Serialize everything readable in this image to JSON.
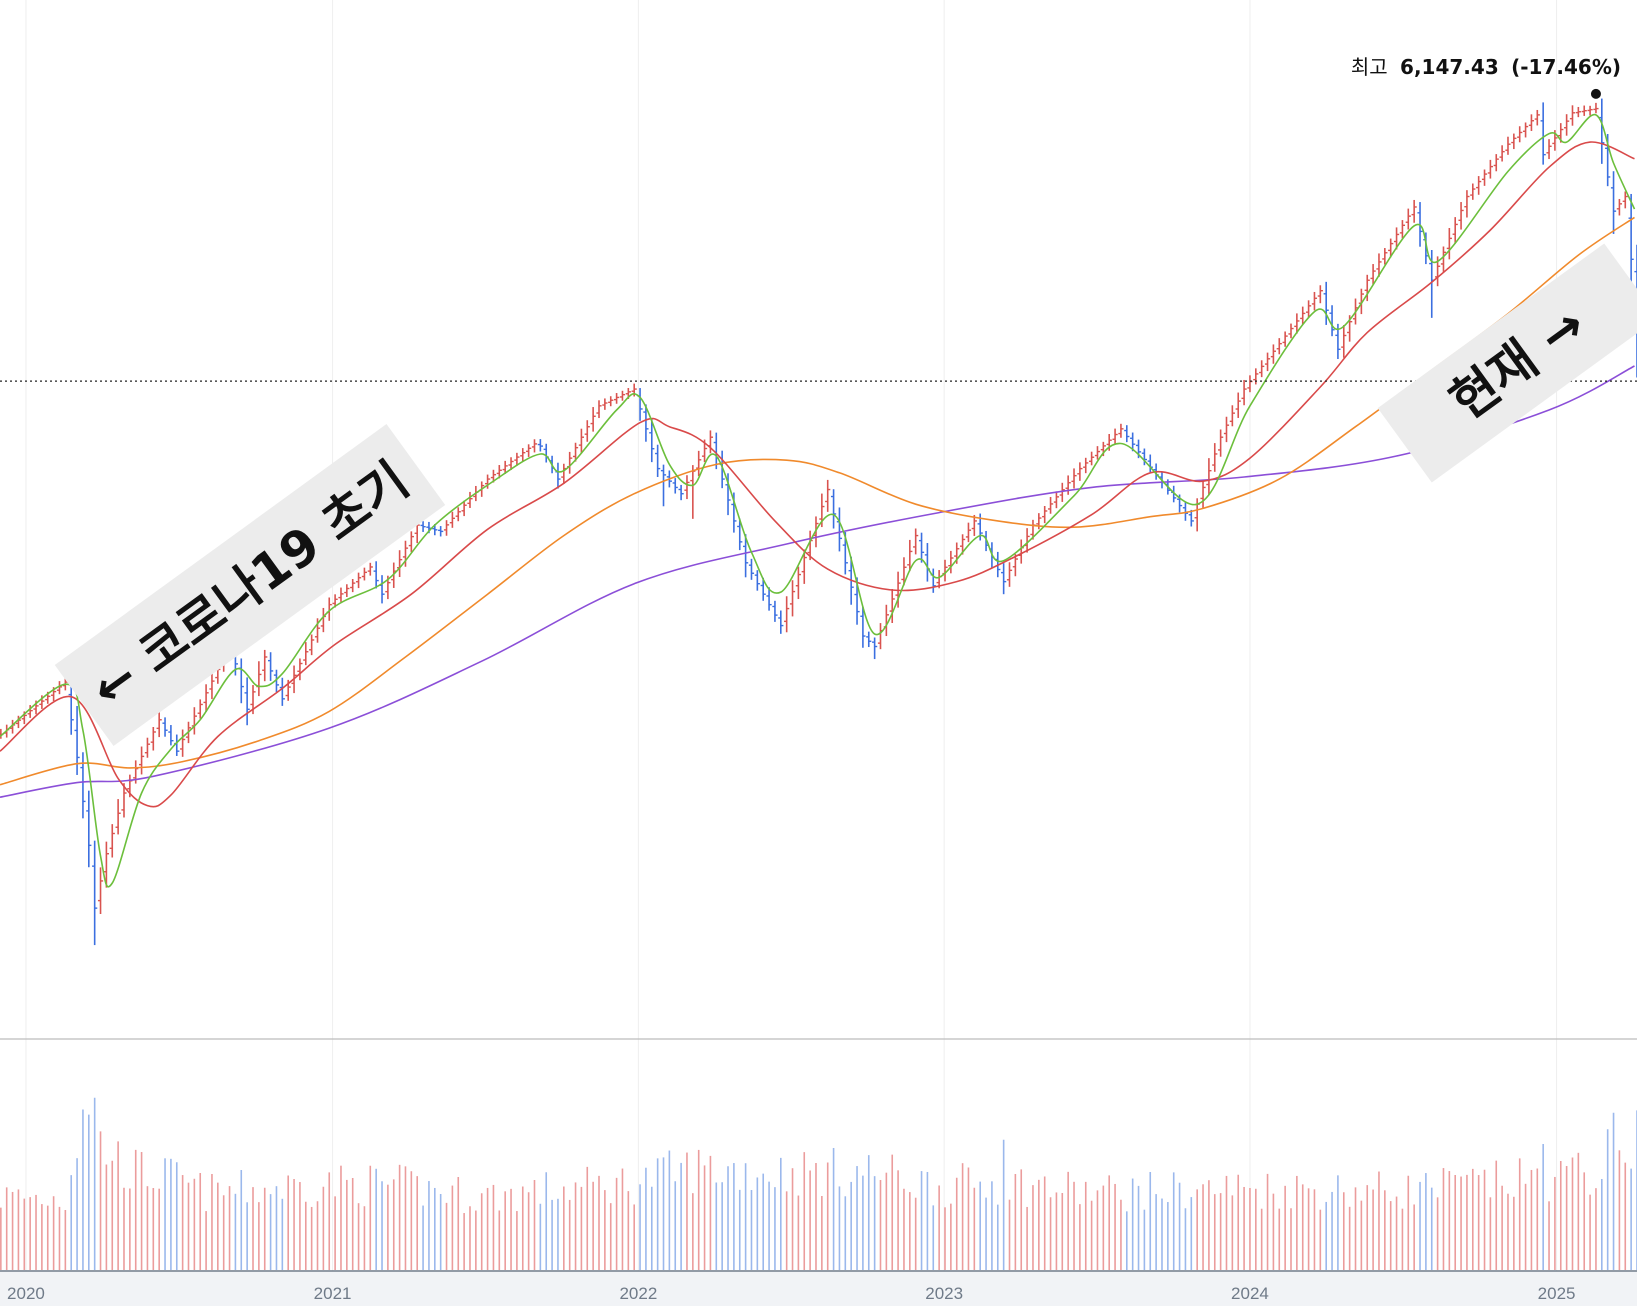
{
  "chart_data": {
    "type": "ohlc",
    "x_axis": {
      "ticks": [
        "2020",
        "2021",
        "2022",
        "2023",
        "2024",
        "2025"
      ],
      "tick_dates": [
        "2020-01-01",
        "2021-01-01",
        "2022-01-01",
        "2023-01-01",
        "2024-01-01",
        "2025-01-01"
      ]
    },
    "x_range": [
      "2019-12-01",
      "2025-04-07"
    ],
    "price_range": [
      2100,
      6400
    ],
    "volume_range": [
      0,
      1.0
    ],
    "reference_level": 4818,
    "peak": {
      "prefix": "최고",
      "value": "6,147.43",
      "change": "(-17.46%)",
      "date": "2025-02-17",
      "price": 6147.43
    },
    "annotations": [
      {
        "text": "← 코로나19 초기",
        "anchor_date": "2020-03-09"
      },
      {
        "text": "현재 →",
        "anchor_date": "2025-04-04"
      }
    ],
    "series_colors": {
      "up": "#d9534f",
      "down": "#3b6fe0",
      "volume_up": "#eb9c9c",
      "volume_down": "#9bb8ec",
      "ma_short": "#6cbf3c",
      "ma_mid": "#d94a4a",
      "ma_long": "#f08a2c",
      "ma_longest": "#8b4fd8",
      "reference_line": "#222222"
    },
    "price_waypoints": [
      [
        "2019-12-02",
        3130
      ],
      [
        "2020-02-17",
        3380
      ],
      [
        "2020-03-02",
        3020
      ],
      [
        "2020-03-16",
        2600
      ],
      [
        "2020-03-23",
        2300
      ],
      [
        "2020-04-06",
        2560
      ],
      [
        "2020-04-27",
        2850
      ],
      [
        "2020-06-08",
        3200
      ],
      [
        "2020-06-29",
        3050
      ],
      [
        "2020-09-01",
        3560
      ],
      [
        "2020-09-21",
        3250
      ],
      [
        "2020-10-12",
        3500
      ],
      [
        "2020-11-02",
        3300
      ],
      [
        "2020-12-28",
        3750
      ],
      [
        "2021-02-15",
        3930
      ],
      [
        "2021-03-01",
        3800
      ],
      [
        "2021-04-12",
        4130
      ],
      [
        "2021-05-10",
        4100
      ],
      [
        "2021-07-05",
        4350
      ],
      [
        "2021-09-03",
        4530
      ],
      [
        "2021-09-27",
        4350
      ],
      [
        "2021-11-15",
        4700
      ],
      [
        "2021-12-27",
        4780
      ],
      [
        "2022-01-24",
        4400
      ],
      [
        "2022-02-21",
        4280
      ],
      [
        "2022-03-28",
        4550
      ],
      [
        "2022-05-09",
        3950
      ],
      [
        "2022-06-13",
        3700
      ],
      [
        "2022-06-20",
        3650
      ],
      [
        "2022-08-15",
        4300
      ],
      [
        "2022-09-26",
        3600
      ],
      [
        "2022-10-10",
        3550
      ],
      [
        "2022-11-28",
        4080
      ],
      [
        "2022-12-19",
        3840
      ],
      [
        "2023-02-06",
        4150
      ],
      [
        "2023-03-13",
        3860
      ],
      [
        "2023-04-17",
        4130
      ],
      [
        "2023-06-12",
        4400
      ],
      [
        "2023-07-31",
        4590
      ],
      [
        "2023-10-23",
        4150
      ],
      [
        "2023-11-27",
        4550
      ],
      [
        "2023-12-25",
        4780
      ],
      [
        "2024-03-25",
        5250
      ],
      [
        "2024-04-15",
        4970
      ],
      [
        "2024-05-20",
        5300
      ],
      [
        "2024-07-15",
        5650
      ],
      [
        "2024-08-05",
        5300
      ],
      [
        "2024-09-16",
        5700
      ],
      [
        "2024-11-04",
        5950
      ],
      [
        "2024-12-09",
        6090
      ],
      [
        "2024-12-16",
        5900
      ],
      [
        "2025-01-20",
        6100
      ],
      [
        "2025-02-17",
        6120
      ],
      [
        "2025-03-10",
        5630
      ],
      [
        "2025-03-24",
        5700
      ],
      [
        "2025-04-07",
        5100
      ]
    ],
    "spikes": [
      [
        "2020-03-23",
        2191
      ],
      [
        "2022-01-31",
        4220
      ],
      [
        "2022-03-07",
        4160
      ],
      [
        "2022-06-20",
        3640
      ],
      [
        "2022-10-10",
        3490
      ],
      [
        "2023-03-13",
        3800
      ],
      [
        "2023-10-30",
        4100
      ],
      [
        "2024-08-05",
        5120
      ],
      [
        "2025-04-07",
        4835
      ]
    ],
    "ma_short": [
      [
        "2019-12-01",
        3120
      ],
      [
        "2020-02-17",
        3370
      ],
      [
        "2020-03-09",
        3150
      ],
      [
        "2020-03-30",
        2550
      ],
      [
        "2020-04-13",
        2420
      ],
      [
        "2020-05-18",
        2850
      ],
      [
        "2020-06-22",
        3060
      ],
      [
        "2020-07-27",
        3200
      ],
      [
        "2020-09-07",
        3440
      ],
      [
        "2020-10-05",
        3360
      ],
      [
        "2020-11-02",
        3420
      ],
      [
        "2020-12-28",
        3720
      ],
      [
        "2021-03-08",
        3870
      ],
      [
        "2021-05-03",
        4130
      ],
      [
        "2021-07-12",
        4340
      ],
      [
        "2021-09-06",
        4470
      ],
      [
        "2021-10-04",
        4390
      ],
      [
        "2021-12-06",
        4680
      ],
      [
        "2022-01-03",
        4740
      ],
      [
        "2022-02-07",
        4420
      ],
      [
        "2022-03-07",
        4320
      ],
      [
        "2022-04-04",
        4460
      ],
      [
        "2022-05-16",
        4000
      ],
      [
        "2022-06-20",
        3810
      ],
      [
        "2022-08-22",
        4180
      ],
      [
        "2022-10-10",
        3610
      ],
      [
        "2022-11-28",
        3960
      ],
      [
        "2022-12-26",
        3880
      ],
      [
        "2023-02-13",
        4080
      ],
      [
        "2023-03-13",
        3960
      ],
      [
        "2023-06-05",
        4270
      ],
      [
        "2023-07-31",
        4520
      ],
      [
        "2023-10-30",
        4230
      ],
      [
        "2024-01-01",
        4700
      ],
      [
        "2024-03-18",
        5150
      ],
      [
        "2024-04-22",
        5080
      ],
      [
        "2024-07-15",
        5560
      ],
      [
        "2024-08-12",
        5390
      ],
      [
        "2024-11-04",
        5820
      ],
      [
        "2024-12-23",
        6000
      ],
      [
        "2025-01-13",
        5960
      ],
      [
        "2025-02-17",
        6090
      ],
      [
        "2025-03-10",
        5860
      ],
      [
        "2025-04-04",
        5640
      ]
    ],
    "ma_mid": [
      [
        "2019-12-01",
        3050
      ],
      [
        "2020-02-24",
        3310
      ],
      [
        "2020-04-20",
        2920
      ],
      [
        "2020-05-25",
        2790
      ],
      [
        "2020-06-22",
        2840
      ],
      [
        "2020-08-17",
        3120
      ],
      [
        "2020-11-02",
        3350
      ],
      [
        "2021-01-04",
        3560
      ],
      [
        "2021-04-05",
        3800
      ],
      [
        "2021-07-05",
        4110
      ],
      [
        "2021-10-04",
        4330
      ],
      [
        "2022-01-03",
        4620
      ],
      [
        "2022-02-07",
        4600
      ],
      [
        "2022-03-28",
        4500
      ],
      [
        "2022-06-13",
        4150
      ],
      [
        "2022-08-15",
        3920
      ],
      [
        "2022-10-31",
        3820
      ],
      [
        "2023-01-16",
        3860
      ],
      [
        "2023-03-27",
        3980
      ],
      [
        "2023-06-26",
        4180
      ],
      [
        "2023-09-04",
        4380
      ],
      [
        "2023-11-06",
        4340
      ],
      [
        "2024-01-01",
        4450
      ],
      [
        "2024-03-25",
        4790
      ],
      [
        "2024-05-20",
        5050
      ],
      [
        "2024-08-05",
        5290
      ],
      [
        "2024-10-14",
        5540
      ],
      [
        "2024-12-23",
        5840
      ],
      [
        "2025-02-10",
        5960
      ],
      [
        "2025-04-04",
        5880
      ]
    ],
    "ma_long": [
      [
        "2019-12-01",
        2890
      ],
      [
        "2020-03-02",
        2990
      ],
      [
        "2020-05-04",
        2970
      ],
      [
        "2020-07-06",
        3000
      ],
      [
        "2020-10-05",
        3100
      ],
      [
        "2020-12-28",
        3240
      ],
      [
        "2021-03-29",
        3500
      ],
      [
        "2021-07-05",
        3800
      ],
      [
        "2021-10-04",
        4080
      ],
      [
        "2021-12-27",
        4280
      ],
      [
        "2022-04-04",
        4420
      ],
      [
        "2022-06-27",
        4440
      ],
      [
        "2022-08-29",
        4380
      ],
      [
        "2022-11-28",
        4230
      ],
      [
        "2023-03-06",
        4150
      ],
      [
        "2023-06-05",
        4120
      ],
      [
        "2023-09-04",
        4170
      ],
      [
        "2023-11-06",
        4210
      ],
      [
        "2024-02-05",
        4350
      ],
      [
        "2024-05-06",
        4600
      ],
      [
        "2024-08-05",
        4870
      ],
      [
        "2024-11-04",
        5140
      ],
      [
        "2025-01-27",
        5420
      ],
      [
        "2025-04-04",
        5600
      ]
    ],
    "ma_longest": [
      [
        "2019-12-01",
        2830
      ],
      [
        "2020-03-02",
        2900
      ],
      [
        "2020-06-01",
        2930
      ],
      [
        "2020-12-28",
        3160
      ],
      [
        "2021-06-28",
        3480
      ],
      [
        "2021-12-27",
        3850
      ],
      [
        "2022-06-27",
        4040
      ],
      [
        "2022-12-26",
        4190
      ],
      [
        "2023-06-26",
        4310
      ],
      [
        "2023-12-25",
        4360
      ],
      [
        "2024-06-24",
        4460
      ],
      [
        "2024-12-23",
        4680
      ],
      [
        "2025-04-04",
        4890
      ]
    ],
    "volume_waypoints": [
      [
        "2019-12-01",
        0.36
      ],
      [
        "2020-02-17",
        0.35
      ],
      [
        "2020-03-09",
        0.82
      ],
      [
        "2020-03-16",
        0.87
      ],
      [
        "2020-03-30",
        0.62
      ],
      [
        "2020-05-04",
        0.49
      ],
      [
        "2020-06-22",
        0.45
      ],
      [
        "2020-08-03",
        0.38
      ],
      [
        "2020-12-28",
        0.42
      ],
      [
        "2021-03-08",
        0.42
      ],
      [
        "2021-06-28",
        0.36
      ],
      [
        "2021-12-27",
        0.43
      ],
      [
        "2022-03-07",
        0.5
      ],
      [
        "2022-06-20",
        0.48
      ],
      [
        "2022-10-10",
        0.48
      ],
      [
        "2022-12-26",
        0.41
      ],
      [
        "2023-03-13",
        0.43
      ],
      [
        "2023-06-26",
        0.38
      ],
      [
        "2023-12-25",
        0.4
      ],
      [
        "2024-06-24",
        0.39
      ],
      [
        "2024-12-23",
        0.45
      ],
      [
        "2025-02-17",
        0.48
      ],
      [
        "2025-03-10",
        0.62
      ],
      [
        "2025-04-04",
        0.66
      ]
    ],
    "volume_spikes": [
      [
        "2020-03-16",
        0.74
      ],
      [
        "2020-03-23",
        0.82
      ],
      [
        "2023-03-13",
        0.62
      ],
      [
        "2024-12-16",
        0.6
      ],
      [
        "2025-03-17",
        0.57
      ],
      [
        "2025-04-04",
        0.7
      ]
    ]
  }
}
